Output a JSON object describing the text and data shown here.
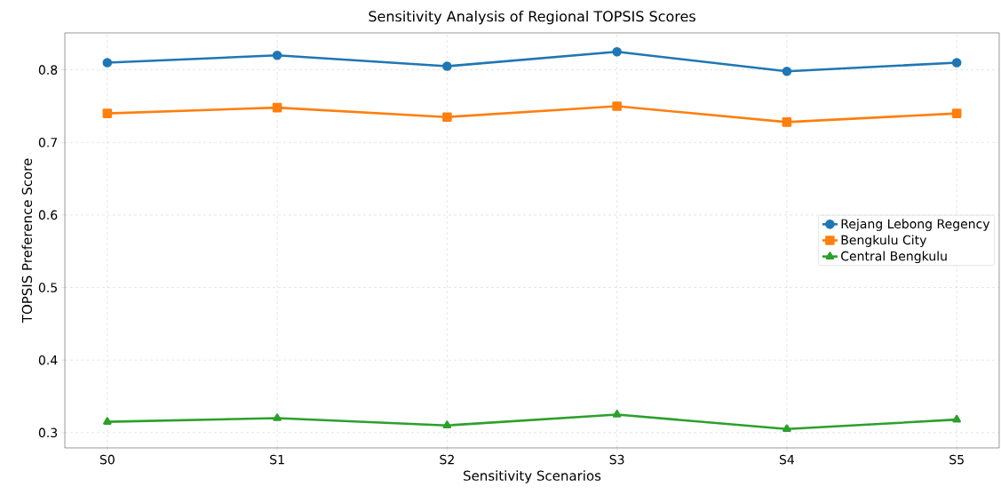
{
  "chart_data": {
    "type": "line",
    "title": "Sensitivity Analysis of Regional TOPSIS Scores",
    "xlabel": "Sensitivity Scenarios",
    "ylabel": "TOPSIS Preference Score",
    "categories": [
      "S0",
      "S1",
      "S2",
      "S3",
      "S4",
      "S5"
    ],
    "series": [
      {
        "name": "Rejang Lebong Regency",
        "color": "#1f77b4",
        "marker": "circle",
        "values": [
          0.81,
          0.82,
          0.805,
          0.825,
          0.798,
          0.81
        ]
      },
      {
        "name": "Bengkulu City",
        "color": "#ff7f0e",
        "marker": "square",
        "values": [
          0.74,
          0.748,
          0.735,
          0.75,
          0.728,
          0.74
        ]
      },
      {
        "name": "Central Bengkulu",
        "color": "#2ca02c",
        "marker": "triangle",
        "values": [
          0.315,
          0.32,
          0.31,
          0.325,
          0.305,
          0.318
        ]
      }
    ],
    "ylim": [
      0.279,
      0.851
    ],
    "yticks": [
      0.3,
      0.4,
      0.5,
      0.6,
      0.7,
      0.8
    ],
    "grid": true,
    "legend": "right",
    "line_style": "solid"
  }
}
